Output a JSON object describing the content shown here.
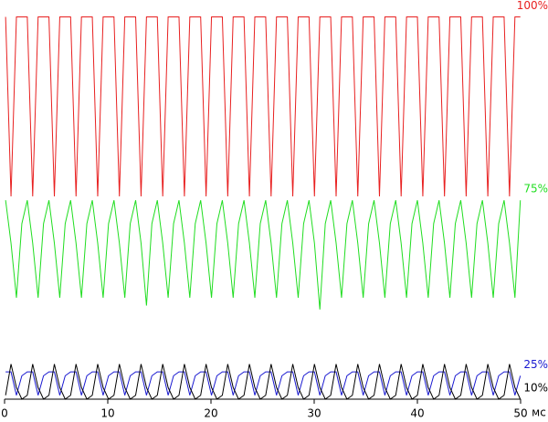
{
  "chart_data": {
    "type": "line",
    "x_label": "мс",
    "x": [
      0.1,
      0.625,
      1.15,
      1.675,
      2.2,
      2.725,
      3.25,
      3.775,
      4.3,
      4.825,
      5.35,
      5.875,
      6.4,
      6.925,
      7.45,
      7.975,
      8.5,
      9.025,
      9.55,
      10.075,
      10.6,
      11.125,
      11.65,
      12.175,
      12.7,
      13.225,
      13.75,
      14.275,
      14.8,
      15.325,
      15.85,
      16.375,
      16.9,
      17.425,
      17.95,
      18.475,
      19,
      19.525,
      20.05,
      20.575,
      21.1,
      21.625,
      22.15,
      22.675,
      23.2,
      23.725,
      24.25,
      24.775,
      25.3,
      25.825,
      26.35,
      26.875,
      27.4,
      27.925,
      28.45,
      28.975,
      29.5,
      30.025,
      30.55,
      31.075,
      31.6,
      32.125,
      32.65,
      33.175,
      33.7,
      34.225,
      34.75,
      35.275,
      35.8,
      36.325,
      36.85,
      37.375,
      37.9,
      38.425,
      38.95,
      39.475,
      40,
      40.525,
      41.05,
      41.575,
      42.1,
      42.625,
      43.15,
      43.675,
      44.2,
      44.725,
      45.25,
      45.775,
      46.3,
      46.825,
      47.35,
      47.875,
      48.4,
      48.925,
      49.45,
      49.975
    ],
    "series": [
      {
        "name": "100%",
        "color": "#e82020",
        "values": [
          98,
          52,
          98,
          98,
          98,
          52,
          98,
          98,
          98,
          52,
          98,
          98,
          98,
          52,
          98,
          98,
          98,
          52,
          98,
          98,
          98,
          52,
          98,
          98,
          98,
          52,
          98,
          98,
          98,
          52,
          98,
          98,
          98,
          52,
          98,
          98,
          98,
          52,
          98,
          98,
          98,
          52,
          98,
          98,
          98,
          52,
          98,
          98,
          98,
          52,
          98,
          98,
          98,
          52,
          98,
          98,
          98,
          52,
          98,
          98,
          98,
          52,
          98,
          98,
          98,
          52,
          98,
          98,
          98,
          52,
          98,
          98,
          98,
          52,
          98,
          98,
          98,
          52,
          98,
          98,
          98,
          52,
          98,
          98,
          98,
          52,
          98,
          98,
          98,
          52,
          98,
          98,
          98,
          52,
          98,
          98
        ]
      },
      {
        "name": "75%",
        "color": "#20dd20",
        "values": [
          51,
          40,
          26,
          45,
          51,
          40,
          26,
          45,
          51,
          40,
          26,
          45,
          51,
          40,
          26,
          45,
          51,
          40,
          26,
          45,
          51,
          40,
          26,
          45,
          51,
          40,
          24,
          45,
          51,
          40,
          26,
          45,
          51,
          40,
          26,
          45,
          51,
          40,
          26,
          45,
          51,
          40,
          26,
          45,
          51,
          40,
          26,
          45,
          51,
          40,
          26,
          45,
          51,
          40,
          26,
          45,
          51,
          40,
          23,
          45,
          51,
          40,
          26,
          45,
          51,
          40,
          26,
          45,
          51,
          40,
          26,
          45,
          51,
          40,
          26,
          45,
          51,
          40,
          26,
          45,
          51,
          40,
          26,
          45,
          51,
          40,
          26,
          45,
          51,
          40,
          26,
          45,
          51,
          40,
          26,
          51
        ]
      },
      {
        "name": "25%",
        "color": "#1818d0",
        "values": [
          7,
          7,
          1,
          6,
          7,
          7,
          1,
          6,
          7,
          7,
          1,
          6,
          7,
          7,
          1,
          6,
          7,
          7,
          1,
          6,
          7,
          7,
          1,
          6,
          7,
          7,
          1,
          6,
          7,
          7,
          1,
          6,
          7,
          7,
          1,
          6,
          7,
          7,
          1,
          6,
          7,
          7,
          1,
          6,
          7,
          7,
          1,
          6,
          7,
          7,
          1,
          6,
          7,
          7,
          1,
          6,
          7,
          7,
          1,
          6,
          7,
          7,
          1,
          6,
          7,
          7,
          1,
          6,
          7,
          7,
          1,
          6,
          7,
          7,
          1,
          6,
          7,
          7,
          1,
          6,
          7,
          7,
          1,
          6,
          7,
          7,
          1,
          6,
          7,
          7,
          1,
          6,
          7,
          7,
          1,
          6
        ]
      },
      {
        "name": "10%",
        "color": "#000000",
        "values": [
          1,
          9,
          3,
          0,
          1,
          9,
          3,
          0,
          1,
          9,
          3,
          0,
          1,
          9,
          3,
          0,
          1,
          9,
          3,
          0,
          1,
          9,
          3,
          0,
          1,
          9,
          3,
          0,
          1,
          9,
          3,
          0,
          1,
          9,
          3,
          0,
          1,
          9,
          3,
          0,
          1,
          9,
          3,
          0,
          1,
          9,
          3,
          0,
          1,
          9,
          3,
          0,
          1,
          9,
          3,
          0,
          1,
          9,
          3,
          0,
          1,
          9,
          3,
          0,
          1,
          9,
          3,
          0,
          1,
          9,
          3,
          0,
          1,
          9,
          3,
          0,
          1,
          9,
          3,
          0,
          1,
          9,
          3,
          0,
          1,
          9,
          3,
          0,
          1,
          9,
          3,
          0,
          1,
          9,
          3,
          0
        ]
      }
    ],
    "xlim": [
      0,
      50
    ],
    "xticks": [
      0,
      10,
      20,
      30,
      40,
      50
    ],
    "ylim": [
      0,
      100
    ]
  }
}
